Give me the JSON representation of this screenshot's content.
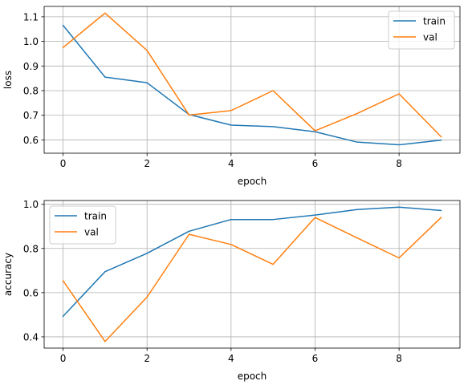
{
  "chart_data": [
    {
      "type": "line",
      "xlabel": "epoch",
      "ylabel": "loss",
      "x": [
        0,
        1,
        2,
        3,
        4,
        5,
        6,
        7,
        8,
        9
      ],
      "xlim": [
        -0.45,
        9.45
      ],
      "ylim": [
        0.546,
        1.142
      ],
      "xticks": [
        0,
        2,
        4,
        6,
        8
      ],
      "yticks": [
        0.6,
        0.7,
        0.8,
        0.9,
        1.0,
        1.1
      ],
      "ytick_format": 1,
      "grid": true,
      "legend_position": "upper right",
      "series": [
        {
          "name": "train",
          "color": "#1f77b4",
          "values": [
            1.065,
            0.855,
            0.832,
            0.703,
            0.66,
            0.654,
            0.633,
            0.591,
            0.58,
            0.599
          ]
        },
        {
          "name": "val",
          "color": "#ff7f0e",
          "values": [
            0.975,
            1.115,
            0.963,
            0.701,
            0.719,
            0.8,
            0.637,
            0.707,
            0.787,
            0.613
          ]
        }
      ]
    },
    {
      "type": "line",
      "xlabel": "epoch",
      "ylabel": "accuracy",
      "x": [
        0,
        1,
        2,
        3,
        4,
        5,
        6,
        7,
        8,
        9
      ],
      "xlim": [
        -0.45,
        9.45
      ],
      "ylim": [
        0.349,
        1.017
      ],
      "xticks": [
        0,
        2,
        4,
        6,
        8
      ],
      "yticks": [
        0.4,
        0.6,
        0.8,
        1.0
      ],
      "ytick_format": 1,
      "grid": true,
      "legend_position": "upper left",
      "series": [
        {
          "name": "train",
          "color": "#1f77b4",
          "values": [
            0.493,
            0.695,
            0.778,
            0.878,
            0.931,
            0.931,
            0.951,
            0.976,
            0.987,
            0.972
          ]
        },
        {
          "name": "val",
          "color": "#ff7f0e",
          "values": [
            0.654,
            0.379,
            0.58,
            0.864,
            0.818,
            0.728,
            0.94,
            0.848,
            0.757,
            0.94
          ]
        }
      ]
    }
  ]
}
